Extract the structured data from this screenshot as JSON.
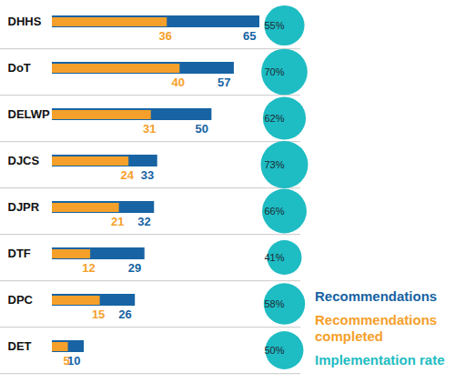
{
  "chart_data": {
    "type": "bar",
    "orientation": "horizontal",
    "stacked": false,
    "data_labels": true,
    "tick_labels": "y",
    "legend": "lower right",
    "categories": [
      "DHHS",
      "DoT",
      "DELWP",
      "DJCS",
      "DJPR",
      "DTF",
      "DPC",
      "DET"
    ],
    "series": [
      {
        "name": "Recommendations",
        "color": "#1763a3",
        "values": [
          65,
          57,
          50,
          33,
          32,
          29,
          26,
          10
        ]
      },
      {
        "name": "Recommendations completed",
        "color": "#f5a02a",
        "values": [
          36,
          40,
          31,
          24,
          21,
          12,
          15,
          5
        ]
      },
      {
        "name": "Implementation rate",
        "type": "dot",
        "color": "#1ebcc3",
        "values": [
          55,
          70,
          62,
          73,
          66,
          41,
          58,
          50
        ],
        "value_labels": [
          "55%",
          "70%",
          "62%",
          "73%",
          "66%",
          "41%",
          "58%",
          "50%"
        ]
      }
    ]
  }
}
